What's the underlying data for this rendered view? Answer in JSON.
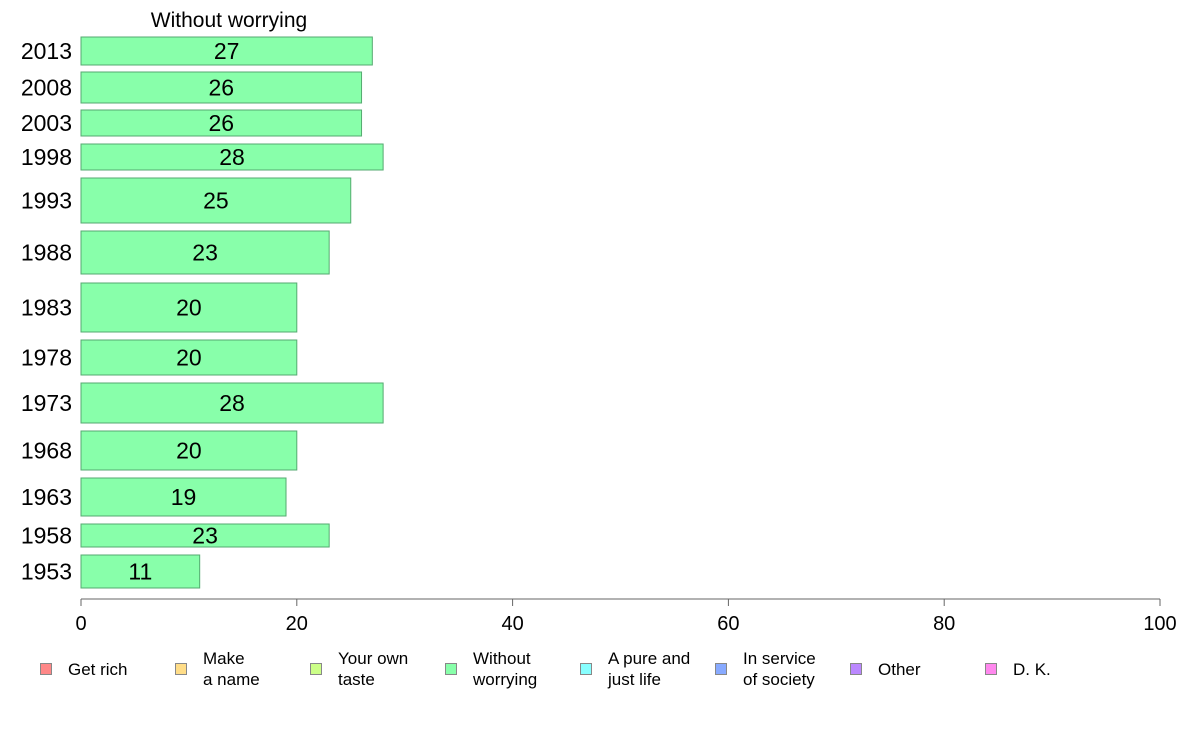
{
  "chart_data": {
    "type": "bar",
    "orientation": "horizontal",
    "title": "Without worrying",
    "categories": [
      "2013",
      "2008",
      "2003",
      "1998",
      "1993",
      "1988",
      "1983",
      "1978",
      "1973",
      "1968",
      "1963",
      "1958",
      "1953"
    ],
    "values": [
      27,
      26,
      26,
      28,
      25,
      23,
      20,
      20,
      28,
      20,
      19,
      23,
      11
    ],
    "value_labels": [
      "27",
      "26",
      "26",
      "28",
      "25",
      "23",
      "20",
      "20",
      "28",
      "20",
      "19",
      "23",
      "11"
    ],
    "xlim": [
      0,
      100
    ],
    "x_ticks": [
      0,
      20,
      40,
      60,
      80,
      100
    ],
    "grid": false,
    "bar_color": "#88ffaa",
    "bar_edge_color": "#55aa70",
    "legend_position": "bottom",
    "legend": [
      {
        "label": "Get rich",
        "color": "#ff8888"
      },
      {
        "label": "Make\na name",
        "color": "#ffdd88"
      },
      {
        "label": "Your own\ntaste",
        "color": "#ccff88"
      },
      {
        "label": "Without\nworrying",
        "color": "#88ffaa"
      },
      {
        "label": "A pure and\njust life",
        "color": "#88ffff"
      },
      {
        "label": "In service\nof society",
        "color": "#88aaff"
      },
      {
        "label": "Other",
        "color": "#bb88ff"
      },
      {
        "label": "D. K.",
        "color": "#ff88ee"
      }
    ]
  }
}
